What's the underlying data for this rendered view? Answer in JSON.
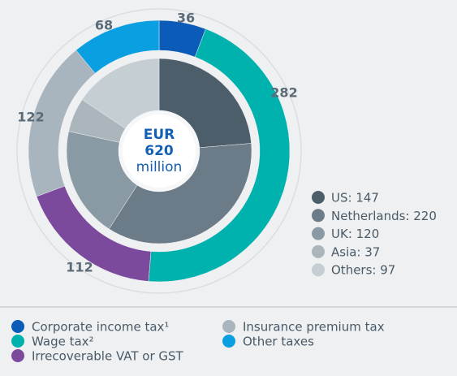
{
  "chart_data": {
    "type": "nested-donut",
    "center": {
      "currency": "EUR",
      "total": 620,
      "unit": "million"
    },
    "outer": {
      "categories": [
        "Corporate income tax¹",
        "Wage tax²",
        "Irrecoverable VAT or GST",
        "Insurance premium tax",
        "Other taxes"
      ],
      "values": [
        36,
        282,
        112,
        122,
        68
      ],
      "colors": [
        "#0a5cb8",
        "#00b2ae",
        "#7b4a9c",
        "#a9b5be",
        "#0a9fe0"
      ]
    },
    "inner": {
      "values": [
        147,
        220,
        120,
        37,
        97
      ],
      "value_labels": [
        "US: 147",
        "Netherlands: 220",
        "UK: 120",
        "Asia: 37",
        "Others: 97"
      ],
      "colors": [
        "#4d5e6b",
        "#6b7c88",
        "#8a9aa4",
        "#aab5bc",
        "#c5ced3"
      ]
    }
  }
}
